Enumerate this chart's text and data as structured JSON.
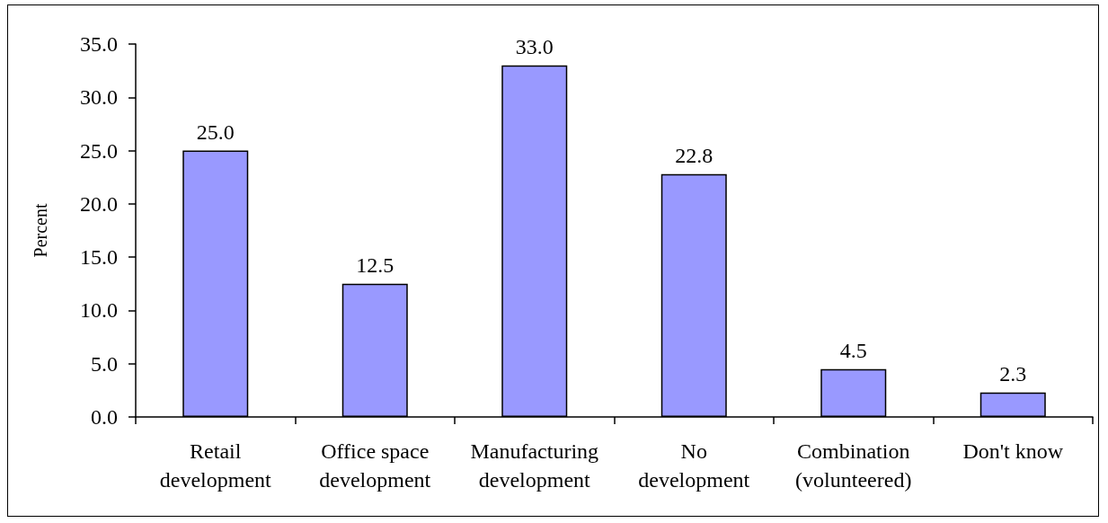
{
  "chart_data": {
    "type": "bar",
    "ylabel": "Percent",
    "categories": [
      "Retail\ndevelopment",
      "Office space\ndevelopment",
      "Manufacturing\ndevelopment",
      "No\ndevelopment",
      "Combination\n(volunteered)",
      "Don't know"
    ],
    "values": [
      25.0,
      12.5,
      33.0,
      22.8,
      4.5,
      2.3
    ],
    "color": "#9999ff",
    "value_labels": [
      "25.0",
      "12.5",
      "33.0",
      "22.8",
      "4.5",
      "2.3"
    ],
    "ylim": [
      0,
      35
    ],
    "yticks": [
      {
        "value": 0,
        "label": "0.0"
      },
      {
        "value": 5,
        "label": "5.0"
      },
      {
        "value": 10,
        "label": "10.0"
      },
      {
        "value": 15,
        "label": "15.0"
      },
      {
        "value": 20,
        "label": "20.0"
      },
      {
        "value": 25,
        "label": "25.0"
      },
      {
        "value": 30,
        "label": "30.0"
      },
      {
        "value": 35,
        "label": "35.0"
      }
    ],
    "grid": false
  }
}
